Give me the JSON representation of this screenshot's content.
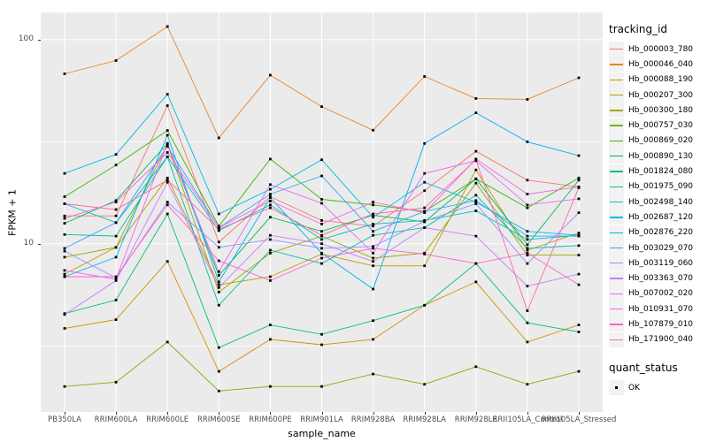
{
  "chart_data": {
    "type": "line",
    "title": "",
    "xlabel": "sample_name",
    "ylabel": "FPKM + 1",
    "y_scale": "log10",
    "y_domain": [
      1.5,
      136
    ],
    "y_ticks": [
      {
        "v": 10,
        "label": "10"
      },
      {
        "v": 100,
        "label": "100"
      }
    ],
    "y_minor": [
      3.1623,
      31.623
    ],
    "grid": true,
    "panel_bg": "#EBEBEB",
    "grid_color": "#FFFFFF",
    "point": {
      "shape": "square",
      "color": "#000000",
      "size": 2.8
    },
    "legend": {
      "position": "right",
      "color_title": "tracking_id",
      "shape_title": "quant_status",
      "shape_label": "OK"
    },
    "x_categories": [
      "PB350LA",
      "RRIM600LA",
      "RRIM600LE",
      "RRIM600SE",
      "RRIM600PE",
      "RRIM901LA",
      "RRIM928BA",
      "RRIM928LA",
      "RRIM928LE",
      "RRII105LA_Control",
      "RRII105LA_Stressed"
    ],
    "series": [
      {
        "name": "Hb_000003_780",
        "color": "#F8766D",
        "values": [
          13.7,
          13.7,
          47.5,
          10.2,
          17.0,
          13.0,
          12.2,
          18.2,
          28.4,
          20.5,
          19.0
        ]
      },
      {
        "name": "Hb_000046_040",
        "color": "#E88526",
        "values": [
          68,
          79,
          116,
          33,
          67,
          47,
          36,
          66,
          51.5,
          51,
          65
        ]
      },
      {
        "name": "Hb_000088_190",
        "color": "#D89000",
        "values": [
          3.85,
          4.25,
          8.2,
          2.37,
          3.4,
          3.2,
          3.4,
          5.0,
          6.5,
          3.3,
          4.0
        ]
      },
      {
        "name": "Hb_000207_300",
        "color": "#C09B00",
        "values": [
          7.1,
          9.6,
          21,
          6.3,
          6.9,
          8.9,
          7.8,
          7.8,
          23,
          9.3,
          11.3
        ]
      },
      {
        "name": "Hb_000300_180",
        "color": "#A3A500",
        "values": [
          8.6,
          9.6,
          30.7,
          5.8,
          9.0,
          10.9,
          8.5,
          9.0,
          19.8,
          8.8,
          8.8
        ]
      },
      {
        "name": "Hb_000757_030",
        "color": "#7CAE00",
        "values": [
          2.0,
          2.1,
          3.3,
          1.9,
          2.0,
          2.0,
          2.3,
          2.05,
          2.5,
          2.05,
          2.37
        ]
      },
      {
        "name": "Hb_000869_020",
        "color": "#39B600",
        "values": [
          17,
          24.3,
          35.9,
          12.2,
          26,
          16.5,
          15.5,
          14.4,
          20.8,
          15,
          21
        ]
      },
      {
        "name": "Hb_000890_130",
        "color": "#00BB4E",
        "values": [
          12.6,
          16.3,
          31,
          7.0,
          13.5,
          11.5,
          13.8,
          12.8,
          20.8,
          9.9,
          20.5
        ]
      },
      {
        "name": "Hb_001824_080",
        "color": "#00BF7D",
        "values": [
          4.55,
          5.3,
          14.0,
          3.1,
          4.0,
          3.6,
          4.2,
          5.0,
          8.0,
          4.1,
          3.7
        ]
      },
      {
        "name": "Hb_001975_090",
        "color": "#00C1A3",
        "values": [
          11.1,
          10.9,
          26.7,
          5.0,
          9.3,
          8.0,
          11.0,
          12.0,
          17.3,
          9.5,
          9.8
        ]
      },
      {
        "name": "Hb_002498_140",
        "color": "#00BFC4",
        "values": [
          15.7,
          12.7,
          26.7,
          11.6,
          15.5,
          10.5,
          12.5,
          13.0,
          14.5,
          10.5,
          11.0
        ]
      },
      {
        "name": "Hb_002687_120",
        "color": "#00BAE0",
        "values": [
          22.1,
          27.4,
          54,
          14.0,
          18.5,
          25.8,
          13.5,
          20.0,
          16.0,
          11.5,
          11.0
        ]
      },
      {
        "name": "Hb_002876_220",
        "color": "#00B0F6",
        "values": [
          6.9,
          8.6,
          34,
          6.5,
          16.8,
          9.0,
          6.0,
          31,
          43.8,
          31.6,
          27.0
        ]
      },
      {
        "name": "Hb_003029_070",
        "color": "#35A2FF",
        "values": [
          9.5,
          12.7,
          30,
          12.0,
          17.5,
          21.5,
          11.5,
          14.4,
          16.3,
          10.9,
          10.9
        ]
      },
      {
        "name": "Hb_003119_060",
        "color": "#9590FF",
        "values": [
          9.2,
          6.8,
          16,
          9.6,
          10.5,
          9.5,
          9.7,
          12.9,
          15.7,
          8.0,
          14.2
        ]
      },
      {
        "name": "Hb_003363_070",
        "color": "#C77CFF",
        "values": [
          4.5,
          6.6,
          20,
          6.1,
          11.0,
          10.0,
          8.2,
          12.0,
          10.9,
          6.2,
          7.1
        ]
      },
      {
        "name": "Hb_007002_020",
        "color": "#E76BF3",
        "values": [
          7.4,
          6.7,
          31,
          7.3,
          19.5,
          15.8,
          9.0,
          22.1,
          25.5,
          15.5,
          16.6
        ]
      },
      {
        "name": "Hb_010931_070",
        "color": "#FA62DB",
        "values": [
          13.3,
          16.0,
          28,
          12.0,
          16.2,
          12.5,
          16.0,
          14.2,
          26,
          17.5,
          19.0
        ]
      },
      {
        "name": "Hb_107879_010",
        "color": "#FF61C9",
        "values": [
          6.9,
          6.9,
          15.5,
          8.25,
          6.6,
          8.5,
          9.5,
          8.9,
          8.0,
          9.0,
          6.3
        ]
      },
      {
        "name": "Hb_171900_040",
        "color": "#FF67A4",
        "values": [
          15.7,
          14.7,
          20.5,
          11.8,
          15.0,
          11.0,
          14.0,
          15.0,
          25.8,
          4.7,
          18.8
        ]
      }
    ]
  }
}
